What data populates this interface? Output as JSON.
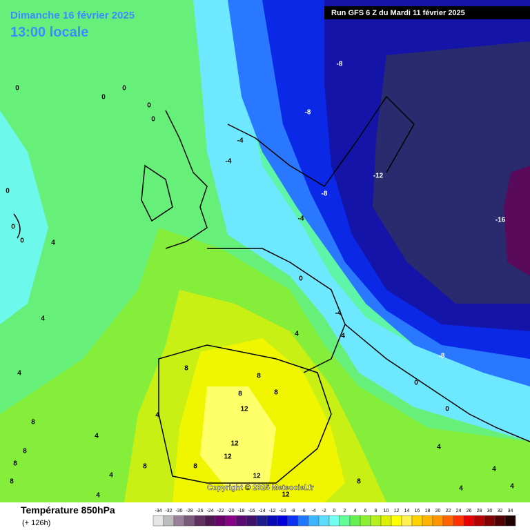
{
  "header": {
    "date": "Dimanche 16 février 2025",
    "time": "13:00 locale",
    "run": "Run GFS 6 Z du Mardi 11 février 2025"
  },
  "map": {
    "copyright": "Copyright © 2025 Meteociel.fr",
    "contour_labels": [
      -8,
      -8,
      -4,
      -4,
      -12,
      -8,
      -4,
      -16,
      0,
      -4,
      4,
      4,
      -8,
      0,
      0,
      0,
      0,
      0,
      0,
      0,
      0,
      0,
      0,
      4,
      4,
      4,
      8,
      8,
      8,
      8,
      12,
      12,
      12,
      4,
      4,
      8,
      8,
      8,
      8,
      4,
      4,
      8,
      8,
      12,
      12,
      8,
      4,
      4,
      4,
      4
    ]
  },
  "legend": {
    "title": "Température 850hPa",
    "subtitle": "(+ 126h)",
    "ticks": [
      -34,
      -32,
      -30,
      -28,
      -26,
      -24,
      -22,
      -20,
      -18,
      -16,
      -14,
      -12,
      -10,
      -8,
      -6,
      -4,
      -2,
      0,
      2,
      4,
      6,
      8,
      10,
      12,
      14,
      16,
      18,
      20,
      22,
      24,
      26,
      28,
      30,
      32,
      34
    ],
    "colors": [
      "#e6e6e6",
      "#bdbdbd",
      "#9a809a",
      "#7a5a7a",
      "#603060",
      "#501850",
      "#6a006a",
      "#880088",
      "#5a0a70",
      "#40106a",
      "#1c1c8c",
      "#0a0ab4",
      "#0000dc",
      "#0a32f0",
      "#1e78ff",
      "#3cb4ff",
      "#5adcff",
      "#70fff0",
      "#60ff96",
      "#64f050",
      "#8cf032",
      "#b4f01e",
      "#dcf000",
      "#ffff00",
      "#fff050",
      "#ffd200",
      "#ffb400",
      "#ff9600",
      "#ff6400",
      "#ff3200",
      "#e60000",
      "#b40000",
      "#820000",
      "#500000",
      "#1e0000"
    ]
  }
}
